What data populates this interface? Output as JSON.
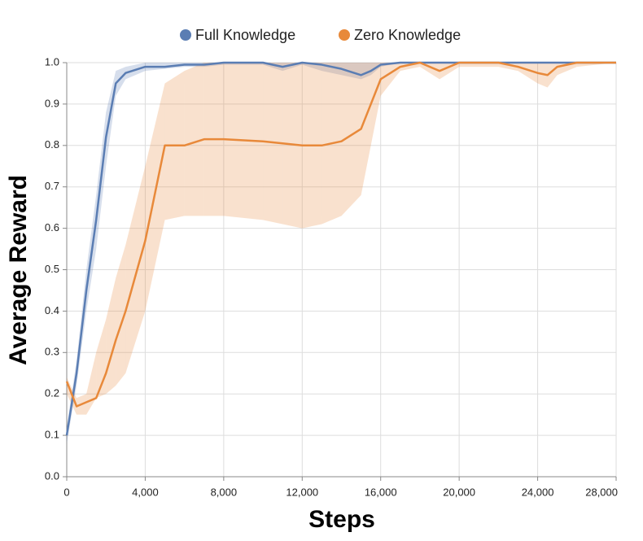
{
  "chart_data": {
    "type": "line",
    "x_label": "Steps",
    "y_label": "Average Reward",
    "x": [
      0,
      500,
      1000,
      1500,
      2000,
      2500,
      3000,
      4000,
      5000,
      6000,
      7000,
      8000,
      10000,
      11000,
      12000,
      13000,
      14000,
      15000,
      15500,
      16000,
      17000,
      18000,
      19000,
      20000,
      22000,
      23000,
      24000,
      24500,
      25000,
      26000,
      28000
    ],
    "series": [
      {
        "name": "Full Knowledge",
        "color": "#5a7db3",
        "values": [
          0.1,
          0.25,
          0.45,
          0.62,
          0.82,
          0.95,
          0.975,
          0.99,
          0.99,
          0.995,
          0.995,
          1.0,
          1.0,
          0.99,
          1.0,
          0.995,
          0.985,
          0.97,
          0.98,
          0.995,
          1.0,
          1.0,
          1.0,
          1.0,
          1.0,
          1.0,
          1.0,
          1.0,
          1.0,
          1.0,
          1.0
        ],
        "lower": [
          0.08,
          0.22,
          0.4,
          0.55,
          0.75,
          0.92,
          0.96,
          0.98,
          0.985,
          0.99,
          0.99,
          0.995,
          0.995,
          0.98,
          0.995,
          0.98,
          0.97,
          0.96,
          0.97,
          0.99,
          1.0,
          1.0,
          1.0,
          1.0,
          1.0,
          1.0,
          1.0,
          1.0,
          1.0,
          1.0,
          1.0
        ],
        "upper": [
          0.12,
          0.28,
          0.5,
          0.68,
          0.88,
          0.98,
          0.99,
          1.0,
          1.0,
          1.0,
          1.0,
          1.0,
          1.0,
          1.0,
          1.0,
          1.0,
          1.0,
          1.0,
          1.0,
          1.0,
          1.0,
          1.0,
          1.0,
          1.0,
          1.0,
          1.0,
          1.0,
          1.0,
          1.0,
          1.0,
          1.0
        ]
      },
      {
        "name": "Zero Knowledge",
        "color": "#e8893a",
        "values": [
          0.23,
          0.17,
          0.18,
          0.19,
          0.25,
          0.33,
          0.4,
          0.57,
          0.8,
          0.8,
          0.815,
          0.815,
          0.81,
          0.805,
          0.8,
          0.8,
          0.81,
          0.84,
          0.9,
          0.96,
          0.99,
          1.0,
          0.98,
          1.0,
          1.0,
          0.99,
          0.975,
          0.97,
          0.99,
          1.0,
          1.0
        ],
        "lower": [
          0.2,
          0.15,
          0.15,
          0.19,
          0.2,
          0.22,
          0.25,
          0.4,
          0.62,
          0.63,
          0.63,
          0.63,
          0.62,
          0.61,
          0.6,
          0.61,
          0.63,
          0.68,
          0.8,
          0.92,
          0.98,
          0.99,
          0.96,
          0.99,
          0.99,
          0.98,
          0.95,
          0.94,
          0.97,
          0.99,
          1.0
        ],
        "upper": [
          0.24,
          0.19,
          0.2,
          0.3,
          0.38,
          0.48,
          0.56,
          0.75,
          0.95,
          0.98,
          1.0,
          1.0,
          1.0,
          1.0,
          1.0,
          1.0,
          1.0,
          1.0,
          1.0,
          1.0,
          1.0,
          1.0,
          1.0,
          1.0,
          1.0,
          1.0,
          1.0,
          1.0,
          1.0,
          1.0,
          1.0
        ]
      }
    ],
    "xlim": [
      0,
      28000
    ],
    "xticks": [
      0,
      {
        "value": 4000,
        "label": "4,000"
      },
      {
        "value": 8000,
        "label": "8,000"
      },
      {
        "value": 12000,
        "label": "12,000"
      },
      {
        "value": 16000,
        "label": "16,000"
      },
      {
        "value": 20000,
        "label": "20,000"
      },
      {
        "value": 24000,
        "label": "24,000"
      },
      {
        "value": 28000,
        "label": "28,000"
      }
    ],
    "ylim": [
      0,
      1
    ],
    "yticks": [
      {
        "value": 0,
        "label": "0.0"
      },
      0.1,
      0.2,
      0.3,
      0.4,
      0.5,
      0.6,
      0.7,
      0.8,
      0.9,
      {
        "value": 1,
        "label": "1.0"
      }
    ],
    "grid": true,
    "legend": "top"
  }
}
